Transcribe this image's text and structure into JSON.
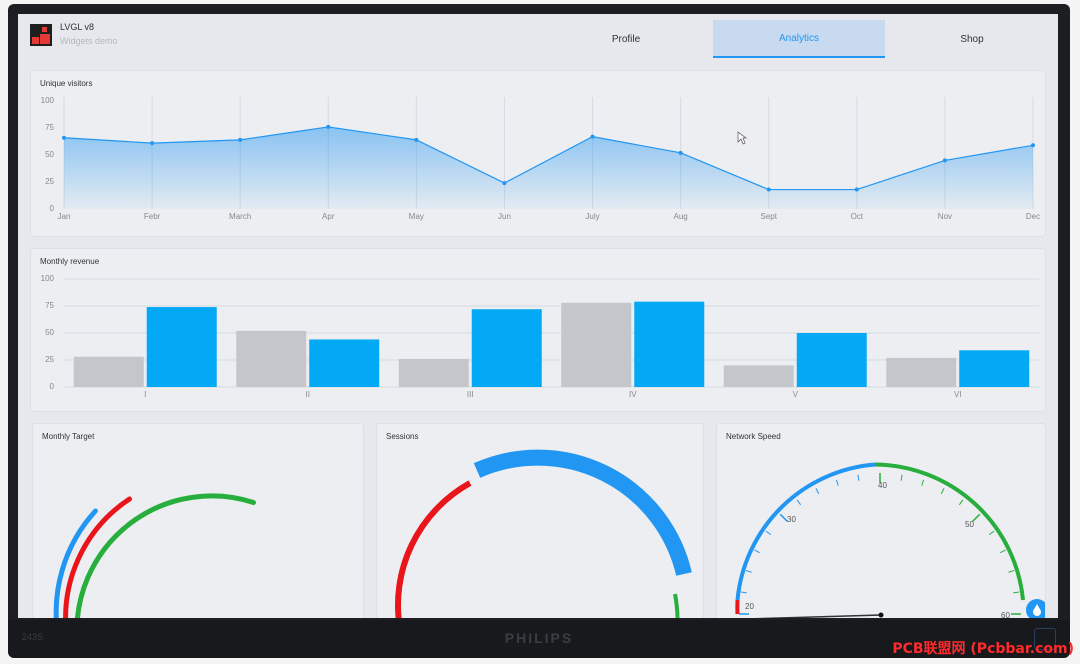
{
  "header": {
    "title": "LVGL v8",
    "subtitle": "Widgets demo",
    "tabs": [
      {
        "label": "Profile",
        "active": false
      },
      {
        "label": "Analytics",
        "active": true
      },
      {
        "label": "Shop",
        "active": false
      }
    ]
  },
  "colors": {
    "accent": "#2196f3",
    "bar_gray": "#c4c6cc",
    "bar_blue": "#03a9f4",
    "red": "#e8151b",
    "green": "#27ae3c"
  },
  "chart_data": [
    {
      "type": "area",
      "title": "Unique visitors",
      "categories": [
        "Jan",
        "Febr",
        "March",
        "Apr",
        "May",
        "Jun",
        "July",
        "Aug",
        "Sept",
        "Oct",
        "Nov",
        "Dec"
      ],
      "values": [
        66,
        61,
        64,
        76,
        64,
        24,
        67,
        52,
        18,
        18,
        45,
        59
      ],
      "yticks": [
        "100",
        "75",
        "50",
        "25",
        "0"
      ],
      "ylim": [
        0,
        100
      ],
      "grid": "vertical"
    },
    {
      "type": "bar",
      "title": "Monthly revenue",
      "categories": [
        "I",
        "II",
        "III",
        "IV",
        "V",
        "VI"
      ],
      "series": [
        {
          "values": [
            28,
            52,
            26,
            78,
            20,
            27
          ]
        },
        {
          "values": [
            74,
            44,
            72,
            79,
            50,
            34
          ]
        }
      ],
      "yticks": [
        "100",
        "75",
        "50",
        "25",
        "0"
      ],
      "ylim": [
        0,
        100
      ],
      "grid": "horizontal"
    }
  ],
  "monthly_target": {
    "title": "Monthly Target"
  },
  "sessions": {
    "title": "Sessions"
  },
  "network_speed": {
    "title": "Network Speed",
    "scale_labels": [
      "20",
      "30",
      "40",
      "50",
      "60"
    ],
    "icon": "water-drop-icon"
  },
  "monitor": {
    "brand": "PHILIPS",
    "model": "243S"
  },
  "watermark": "PCB联盟网 (Pcbbar.com)"
}
